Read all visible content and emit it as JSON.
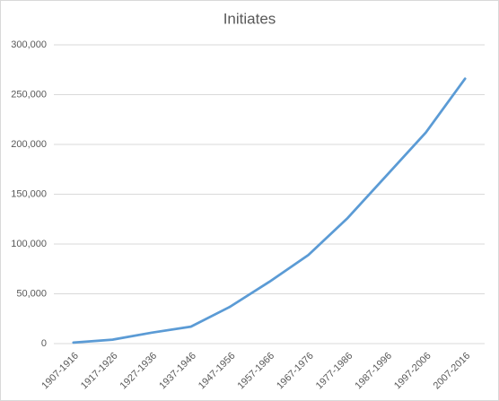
{
  "chart_data": {
    "type": "line",
    "title": "Initiates",
    "categories": [
      "1907-1916",
      "1917-1926",
      "1927-1936",
      "1937-1946",
      "1947-1956",
      "1957-1966",
      "1967-1976",
      "1977-1986",
      "1987-1996",
      "1997-2006",
      "2007-2016"
    ],
    "values": [
      1000,
      4000,
      11000,
      17000,
      37000,
      62000,
      89000,
      126000,
      169000,
      212000,
      266000
    ],
    "color": "#5b9bd5",
    "ylim": [
      0,
      300000
    ],
    "yticks": [
      0,
      {
        "value": 50000,
        "label": "50,000"
      },
      {
        "value": 100000,
        "label": "100,000"
      },
      {
        "value": 150000,
        "label": "150,000"
      },
      {
        "value": 200000,
        "label": "200,000"
      },
      {
        "value": 250000,
        "label": "250,000"
      },
      {
        "value": 300000,
        "label": "300,000"
      }
    ],
    "grid": true
  }
}
